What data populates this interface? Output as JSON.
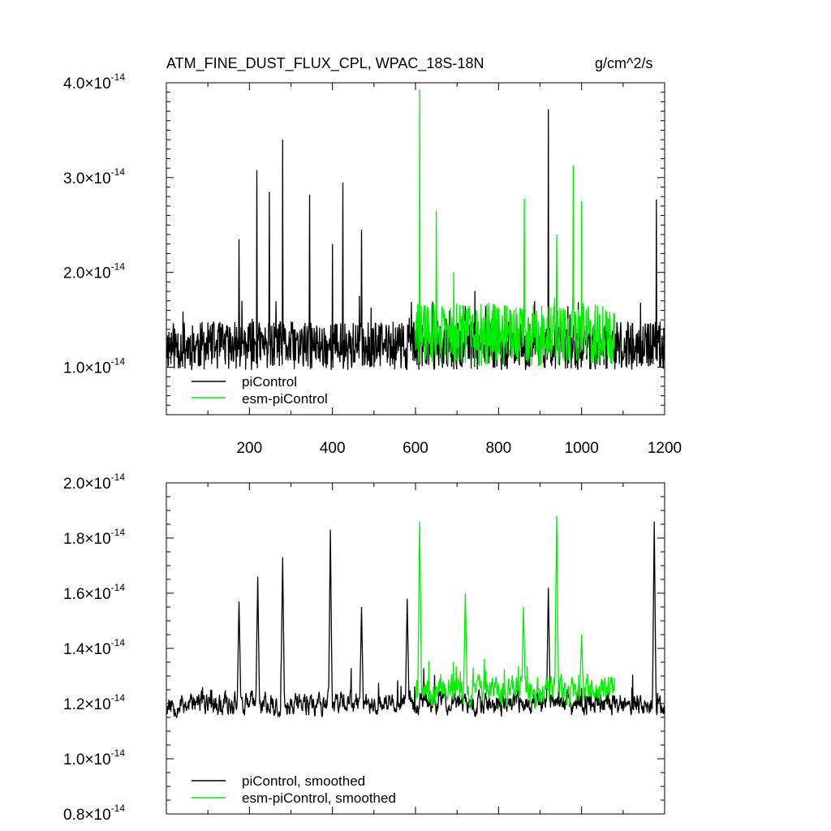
{
  "chart_data": [
    {
      "type": "line",
      "title": "ATM_FINE_DUST_FLUX_CPL, WPAC_18S-18N",
      "units": "g/cm^2/s",
      "xlim": [
        0,
        1200
      ],
      "ylim": [
        5e-15,
        4e-14
      ],
      "x_ticks": [
        "200",
        "400",
        "600",
        "800",
        "1000",
        "1200"
      ],
      "y_ticks": [
        {
          "mantissa": "1.0",
          "base": "×10",
          "exp": "-14"
        },
        {
          "mantissa": "2.0",
          "base": "×10",
          "exp": "-14"
        },
        {
          "mantissa": "3.0",
          "base": "×10",
          "exp": "-14"
        },
        {
          "mantissa": "4.0",
          "base": "×10",
          "exp": "-14"
        }
      ],
      "legend_position": "bottom-left",
      "series": [
        {
          "name": "piControl",
          "color": "#000000",
          "x_start": 1,
          "x_end": 1200,
          "baseline": 1.15e-14,
          "noise": 3.2e-15,
          "seed": 11,
          "spikes": [
            [
              218,
              3.08e-14
            ],
            [
              248,
              2.85e-14
            ],
            [
              280,
              3.4e-14
            ],
            [
              345,
              2.82e-14
            ],
            [
              425,
              2.95e-14
            ],
            [
              470,
              2.45e-14
            ],
            [
              920,
              3.72e-14
            ],
            [
              1180,
              2.77e-14
            ],
            [
              175,
              2.35e-14
            ],
            [
              400,
              2.3e-14
            ]
          ]
        },
        {
          "name": "esm-piControl",
          "color": "#00ee00",
          "x_start": 600,
          "x_end": 1080,
          "baseline": 1.25e-14,
          "noise": 4.2e-15,
          "seed": 29,
          "spikes": [
            [
              610,
              3.93e-14
            ],
            [
              650,
              2.65e-14
            ],
            [
              862,
              2.78e-14
            ],
            [
              980,
              3.13e-14
            ],
            [
              1000,
              2.75e-14
            ],
            [
              940,
              2.4e-14
            ]
          ]
        }
      ]
    },
    {
      "type": "line",
      "xlim": [
        0,
        1200
      ],
      "ylim": [
        8e-15,
        2e-14
      ],
      "y_ticks": [
        {
          "mantissa": "0.8",
          "base": "×10",
          "exp": "-14"
        },
        {
          "mantissa": "1.0",
          "base": "×10",
          "exp": "-14"
        },
        {
          "mantissa": "1.2",
          "base": "×10",
          "exp": "-14"
        },
        {
          "mantissa": "1.4",
          "base": "×10",
          "exp": "-14"
        },
        {
          "mantissa": "1.6",
          "base": "×10",
          "exp": "-14"
        },
        {
          "mantissa": "1.8",
          "base": "×10",
          "exp": "-14"
        },
        {
          "mantissa": "2.0",
          "base": "×10",
          "exp": "-14"
        }
      ],
      "legend_position": "bottom-left",
      "series": [
        {
          "name": "piControl, smoothed",
          "color": "#000000",
          "x_start": 1,
          "x_end": 1200,
          "baseline": 1.18e-14,
          "noise": 1.4e-15,
          "seed": 53,
          "spikes": [
            [
              175,
              1.57e-14
            ],
            [
              220,
              1.66e-14
            ],
            [
              280,
              1.73e-14
            ],
            [
              395,
              1.83e-14
            ],
            [
              470,
              1.55e-14
            ],
            [
              1175,
              1.86e-14
            ],
            [
              920,
              1.62e-14
            ],
            [
              580,
              1.58e-14
            ]
          ]
        },
        {
          "name": "esm-piControl, smoothed",
          "color": "#00ee00",
          "x_start": 600,
          "x_end": 1080,
          "baseline": 1.22e-14,
          "noise": 1.8e-15,
          "seed": 71,
          "spikes": [
            [
              610,
              1.86e-14
            ],
            [
              940,
              1.88e-14
            ],
            [
              720,
              1.6e-14
            ],
            [
              860,
              1.55e-14
            ],
            [
              1000,
              1.45e-14
            ]
          ]
        }
      ]
    }
  ]
}
